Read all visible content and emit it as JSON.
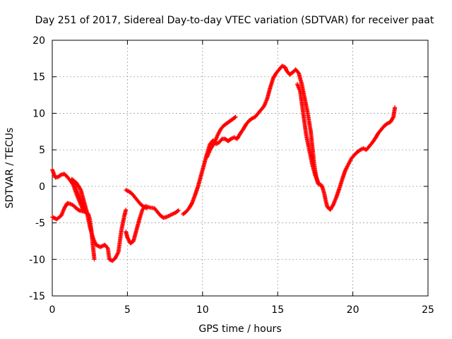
{
  "chart_data": {
    "type": "scatter",
    "title": "Day 251 of 2017, Sidereal Day-to-day VTEC variation (SDTVAR) for receiver paat",
    "xlabel": "GPS time / hours",
    "ylabel": "SDTVAR / TECUs",
    "xlim": [
      0,
      25
    ],
    "ylim": [
      -15,
      20
    ],
    "xticks": [
      "0",
      "5",
      "10",
      "15",
      "20",
      "25"
    ],
    "yticks": [
      "-15",
      "-10",
      "-5",
      "0",
      "5",
      "10",
      "15",
      "20"
    ],
    "grid": true,
    "marker": "+",
    "color": "#ff0000",
    "series": [
      {
        "points": [
          [
            0.0,
            2.3
          ],
          [
            0.2,
            1.2
          ],
          [
            0.4,
            1.3
          ],
          [
            0.6,
            1.6
          ],
          [
            0.8,
            1.7
          ],
          [
            1.0,
            1.3
          ],
          [
            1.2,
            0.8
          ],
          [
            1.4,
            0.2
          ],
          [
            1.6,
            -1.0
          ],
          [
            1.8,
            -2.0
          ],
          [
            2.0,
            -3.0
          ],
          [
            2.2,
            -3.5
          ],
          [
            2.4,
            -3.8
          ],
          [
            2.5,
            -4.5
          ],
          [
            2.6,
            -6.0
          ],
          [
            2.7,
            -8.0
          ],
          [
            2.8,
            -10.0
          ]
        ]
      },
      {
        "points": [
          [
            0.0,
            -4.2
          ],
          [
            0.3,
            -4.5
          ],
          [
            0.6,
            -4.0
          ],
          [
            0.8,
            -3.0
          ],
          [
            1.0,
            -2.3
          ],
          [
            1.2,
            -2.4
          ],
          [
            1.4,
            -2.6
          ],
          [
            1.6,
            -3.0
          ],
          [
            1.8,
            -3.3
          ],
          [
            2.0,
            -3.4
          ],
          [
            2.2,
            -3.5
          ],
          [
            1.3,
            1.0
          ],
          [
            1.6,
            0.5
          ],
          [
            1.9,
            -0.5
          ],
          [
            2.1,
            -2.0
          ],
          [
            2.3,
            -3.5
          ],
          [
            2.5,
            -5.5
          ],
          [
            2.7,
            -7.0
          ],
          [
            2.9,
            -8.0
          ],
          [
            3.2,
            -8.3
          ],
          [
            3.5,
            -8.0
          ],
          [
            3.7,
            -8.5
          ],
          [
            3.8,
            -10.0
          ],
          [
            4.0,
            -10.2
          ],
          [
            4.2,
            -9.8
          ],
          [
            4.4,
            -9.0
          ],
          [
            4.5,
            -7.5
          ],
          [
            4.6,
            -6.0
          ],
          [
            4.7,
            -5.0
          ],
          [
            4.8,
            -4.0
          ],
          [
            4.9,
            -3.2
          ]
        ]
      },
      {
        "points": [
          [
            4.9,
            -6.2
          ],
          [
            5.0,
            -7.0
          ],
          [
            5.2,
            -7.8
          ],
          [
            5.4,
            -7.5
          ],
          [
            5.6,
            -6.0
          ],
          [
            5.8,
            -4.5
          ],
          [
            6.0,
            -3.2
          ],
          [
            6.2,
            -2.7
          ],
          [
            6.5,
            -2.9
          ],
          [
            6.8,
            -3.0
          ],
          [
            7.0,
            -3.5
          ],
          [
            7.2,
            -4.0
          ],
          [
            7.4,
            -4.3
          ],
          [
            7.6,
            -4.2
          ],
          [
            7.8,
            -4.0
          ],
          [
            8.0,
            -3.8
          ],
          [
            8.2,
            -3.6
          ],
          [
            8.4,
            -3.3
          ]
        ]
      },
      {
        "points": [
          [
            4.9,
            -0.5
          ],
          [
            5.1,
            -0.7
          ],
          [
            5.3,
            -1.0
          ],
          [
            5.5,
            -1.5
          ],
          [
            5.7,
            -2.0
          ],
          [
            5.9,
            -2.5
          ],
          [
            6.1,
            -2.8
          ],
          [
            6.3,
            -3.0
          ]
        ]
      },
      {
        "points": [
          [
            8.7,
            -3.8
          ],
          [
            8.9,
            -3.5
          ],
          [
            9.1,
            -3.0
          ],
          [
            9.3,
            -2.3
          ],
          [
            9.5,
            -1.2
          ],
          [
            9.7,
            0.0
          ],
          [
            9.9,
            1.5
          ],
          [
            10.1,
            3.0
          ],
          [
            10.3,
            4.5
          ],
          [
            10.5,
            5.8
          ],
          [
            10.7,
            6.3
          ],
          [
            10.9,
            5.8
          ],
          [
            11.1,
            6.0
          ],
          [
            11.3,
            6.5
          ],
          [
            11.5,
            6.5
          ],
          [
            11.7,
            6.2
          ],
          [
            11.9,
            6.5
          ],
          [
            12.1,
            6.7
          ],
          [
            12.3,
            6.5
          ],
          [
            12.5,
            7.2
          ],
          [
            12.7,
            7.8
          ],
          [
            12.9,
            8.5
          ],
          [
            13.1,
            9.0
          ],
          [
            13.3,
            9.3
          ],
          [
            13.5,
            9.5
          ],
          [
            13.7,
            10.0
          ],
          [
            13.9,
            10.5
          ],
          [
            14.1,
            11.0
          ],
          [
            14.3,
            12.0
          ],
          [
            14.5,
            13.5
          ],
          [
            14.7,
            14.8
          ],
          [
            14.9,
            15.5
          ],
          [
            15.1,
            16.0
          ],
          [
            15.3,
            16.5
          ],
          [
            15.5,
            16.3
          ],
          [
            15.6,
            15.8
          ],
          [
            15.8,
            15.3
          ],
          [
            16.0,
            15.6
          ],
          [
            16.2,
            16.0
          ],
          [
            16.4,
            15.5
          ],
          [
            16.6,
            14.0
          ],
          [
            16.8,
            12.0
          ],
          [
            17.0,
            10.0
          ],
          [
            17.2,
            7.5
          ],
          [
            17.3,
            5.5
          ],
          [
            17.4,
            3.5
          ],
          [
            17.5,
            2.0
          ],
          [
            17.6,
            1.0
          ],
          [
            17.7,
            0.3
          ],
          [
            17.9,
            0.2
          ],
          [
            18.0,
            -0.3
          ],
          [
            18.1,
            -1.0
          ],
          [
            18.2,
            -2.0
          ],
          [
            18.3,
            -2.8
          ],
          [
            18.5,
            -3.2
          ],
          [
            18.7,
            -2.5
          ],
          [
            18.9,
            -1.5
          ],
          [
            19.1,
            -0.3
          ],
          [
            19.3,
            1.0
          ],
          [
            19.5,
            2.2
          ],
          [
            19.7,
            3.0
          ],
          [
            19.9,
            3.8
          ],
          [
            20.1,
            4.3
          ],
          [
            20.3,
            4.7
          ],
          [
            20.5,
            5.0
          ],
          [
            20.7,
            5.2
          ],
          [
            20.9,
            5.0
          ],
          [
            21.1,
            5.5
          ],
          [
            21.3,
            6.0
          ],
          [
            21.5,
            6.6
          ],
          [
            21.7,
            7.3
          ],
          [
            21.9,
            7.8
          ],
          [
            22.1,
            8.3
          ],
          [
            22.3,
            8.6
          ],
          [
            22.5,
            8.8
          ],
          [
            22.7,
            9.5
          ],
          [
            22.8,
            10.8
          ]
        ]
      },
      {
        "points": [
          [
            10.3,
            4.0
          ],
          [
            10.5,
            5.0
          ],
          [
            10.8,
            6.0
          ],
          [
            11.0,
            7.0
          ],
          [
            11.2,
            7.8
          ],
          [
            11.4,
            8.3
          ],
          [
            11.6,
            8.6
          ],
          [
            11.8,
            8.9
          ],
          [
            12.0,
            9.2
          ],
          [
            12.2,
            9.5
          ]
        ]
      },
      {
        "points": [
          [
            16.3,
            14.0
          ],
          [
            16.5,
            13.0
          ],
          [
            16.7,
            10.0
          ],
          [
            16.9,
            7.0
          ],
          [
            17.1,
            5.0
          ],
          [
            17.3,
            3.0
          ],
          [
            17.5,
            1.5
          ],
          [
            17.7,
            0.5
          ]
        ]
      }
    ]
  }
}
